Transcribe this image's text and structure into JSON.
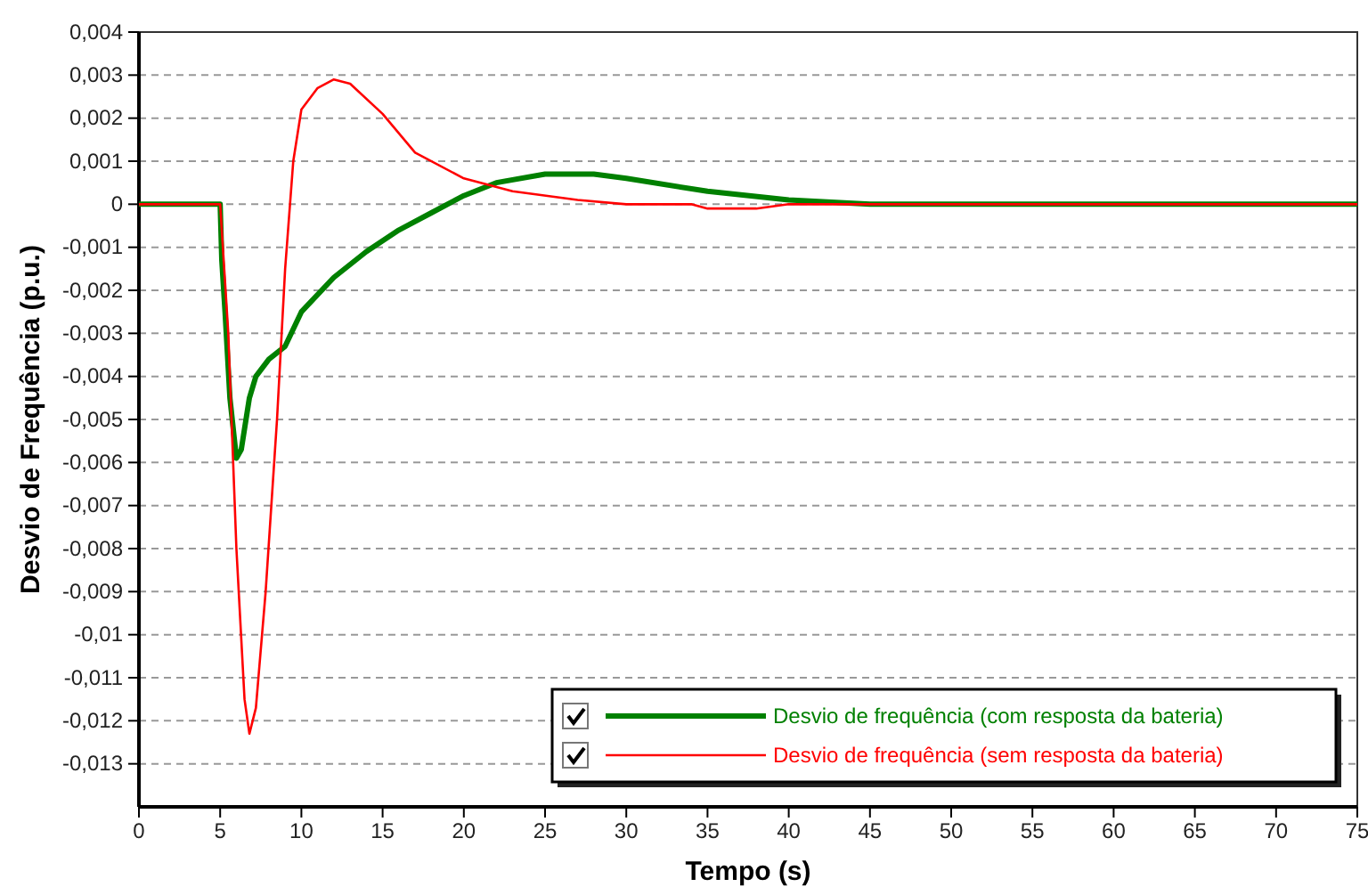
{
  "chart_data": {
    "type": "line",
    "xlabel": "Tempo (s)",
    "ylabel": "Desvio de Frequência (p.u.)",
    "xlim": [
      0,
      75
    ],
    "xticks": [
      0,
      5,
      10,
      15,
      20,
      25,
      30,
      35,
      40,
      45,
      50,
      55,
      60,
      65,
      70,
      75
    ],
    "ylim": [
      -0.014,
      0.004
    ],
    "yticks": [
      {
        "value": 0.004,
        "label": "0,004"
      },
      {
        "value": 0.003,
        "label": "0,003"
      },
      {
        "value": 0.002,
        "label": "0,002"
      },
      {
        "value": 0.001,
        "label": "0,001"
      },
      {
        "value": 0,
        "label": "0"
      },
      {
        "value": -0.001,
        "label": "-0,001"
      },
      {
        "value": -0.002,
        "label": "-0,002"
      },
      {
        "value": -0.003,
        "label": "-0,003"
      },
      {
        "value": -0.004,
        "label": "-0,004"
      },
      {
        "value": -0.005,
        "label": "-0,005"
      },
      {
        "value": -0.006,
        "label": "-0,006"
      },
      {
        "value": -0.007,
        "label": "-0,007"
      },
      {
        "value": -0.008,
        "label": "-0,008"
      },
      {
        "value": -0.009,
        "label": "-0,009"
      },
      {
        "value": -0.01,
        "label": "-0,01"
      },
      {
        "value": -0.011,
        "label": "-0,011"
      },
      {
        "value": -0.012,
        "label": "-0,012"
      },
      {
        "value": -0.013,
        "label": "-0,013"
      }
    ],
    "grid": "y",
    "legend": "bottom right",
    "marker": "none",
    "line_style": "solid",
    "series": [
      {
        "name": "Desvio de frequência (com resposta da bateria)",
        "color": "#008000",
        "x": [
          0,
          5,
          5.1,
          5.3,
          5.6,
          6,
          6.3,
          6.8,
          7.2,
          8,
          9,
          10,
          12,
          14,
          16,
          18,
          20,
          22,
          25,
          28,
          30,
          35,
          40,
          45,
          47,
          70,
          70.5,
          75
        ],
        "values": [
          0,
          0,
          -0.0013,
          -0.0025,
          -0.0045,
          -0.0059,
          -0.0057,
          -0.0045,
          -0.004,
          -0.0036,
          -0.0033,
          -0.0025,
          -0.0017,
          -0.0011,
          -0.0006,
          -0.0002,
          0.0002,
          0.0005,
          0.0007,
          0.0007,
          0.0006,
          0.0003,
          0.0001,
          0,
          0,
          0,
          0,
          0
        ]
      },
      {
        "name": "Desvio de frequência (sem resposta da bateria)",
        "color": "#ff0000",
        "x": [
          0,
          5,
          5.5,
          6,
          6.5,
          6.8,
          7.2,
          7.8,
          8.5,
          9,
          9.5,
          10,
          11,
          12,
          13,
          15,
          17,
          20,
          23,
          27,
          30,
          34,
          35,
          38,
          40,
          75
        ],
        "values": [
          0,
          0,
          -0.003,
          -0.008,
          -0.0115,
          -0.0123,
          -0.0117,
          -0.009,
          -0.005,
          -0.0015,
          0.001,
          0.0022,
          0.0027,
          0.0029,
          0.0028,
          0.0021,
          0.0012,
          0.0006,
          0.0003,
          0.0001,
          0,
          0,
          -0.0001,
          -0.0001,
          0,
          0
        ]
      }
    ]
  }
}
